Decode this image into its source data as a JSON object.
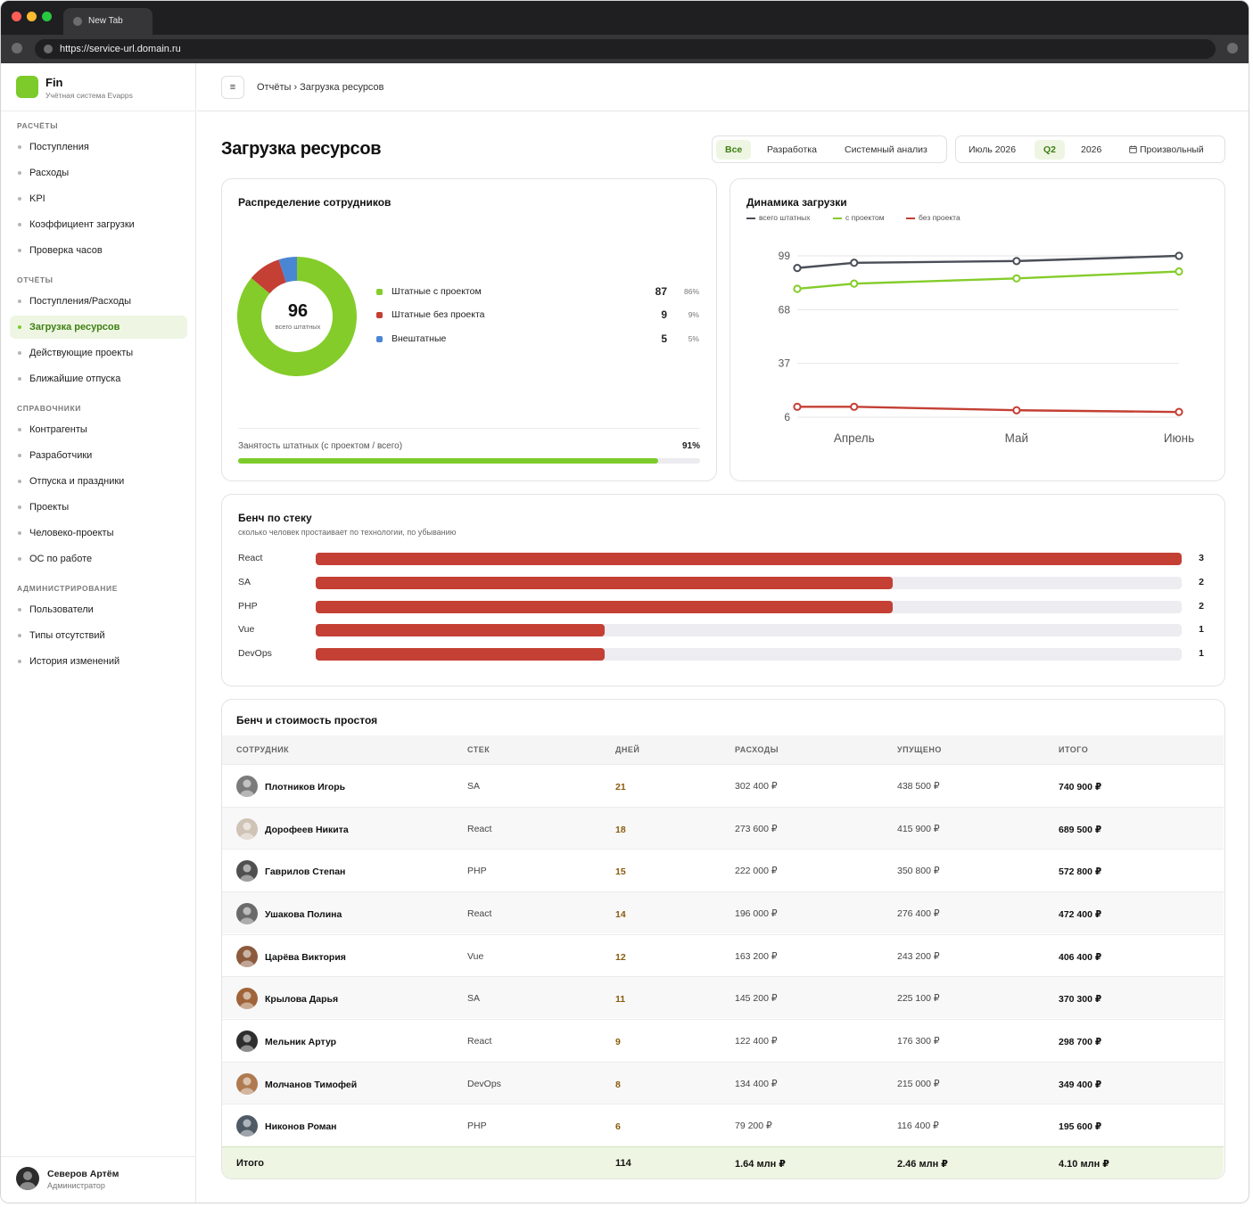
{
  "browser": {
    "tab_title": "New Tab",
    "url": "https://service-url.domain.ru"
  },
  "brand": {
    "name": "Fin",
    "subtitle": "Учётная система Evapps",
    "accent": "#7ccb2b"
  },
  "sidebar": {
    "sections": [
      {
        "title": "РАСЧЁТЫ",
        "items": [
          "Поступления",
          "Расходы",
          "KPI",
          "Коэффициент загрузки",
          "Проверка часов"
        ]
      },
      {
        "title": "ОТЧЁТЫ",
        "items": [
          "Поступления/Расходы",
          "Загрузка ресурсов",
          "Действующие проекты",
          "Ближайшие отпуска"
        ]
      },
      {
        "title": "СПРАВОЧНИКИ",
        "items": [
          "Контрагенты",
          "Разработчики",
          "Отпуска и праздники",
          "Проекты",
          "Человеко-проекты",
          "ОС по работе"
        ]
      },
      {
        "title": "АДМИНИСТРИРОВАНИЕ",
        "items": [
          "Пользователи",
          "Типы отсутствий",
          "История изменений"
        ]
      }
    ],
    "active_item": "Загрузка ресурсов",
    "user": {
      "name": "Северов Артём",
      "role": "Администратор"
    }
  },
  "topbar": {
    "menu_icon": "≡",
    "breadcrumb": "Отчёты › Загрузка ресурсов"
  },
  "page": {
    "title": "Загрузка ресурсов",
    "filter_department": {
      "options": [
        "Все",
        "Разработка",
        "Системный анализ"
      ],
      "selected": "Все"
    },
    "filter_period": {
      "options": [
        "Июль 2026",
        "Q2",
        "2026",
        "Произвольный"
      ],
      "selected": "Q2",
      "custom_icon": "calendar-icon"
    }
  },
  "distribution": {
    "title": "Распределение сотрудников",
    "total": "96",
    "total_caption": "всего штатных",
    "rows": [
      {
        "label": "Штатные с проектом",
        "count": "87",
        "pct": "86%",
        "color": "#84cc2a"
      },
      {
        "label": "Штатные без проекта",
        "count": "9",
        "pct": "9%",
        "color": "#c43f34"
      },
      {
        "label": "Внештатные",
        "count": "5",
        "pct": "5%",
        "color": "#4a86d4"
      }
    ],
    "utilization_label": "Занятость штатных (с проектом / всего)",
    "utilization_value": "91%",
    "utilization_fraction": 0.91
  },
  "chart_data": {
    "type": "line",
    "title": "Динамика загрузки",
    "categories": [
      "Апрель",
      "Май",
      "Июнь"
    ],
    "x": [
      0,
      0.35,
      1.35,
      2.35
    ],
    "y_ticks": [
      6,
      37,
      68,
      99
    ],
    "ylim": [
      6,
      99
    ],
    "grid": true,
    "legend_position": "top-left",
    "series": [
      {
        "name": "всего штатных",
        "color": "#4a4e57",
        "values": [
          92,
          95,
          96,
          99
        ]
      },
      {
        "name": "с проектом",
        "color": "#84cc2a",
        "values": [
          80,
          83,
          86,
          90
        ]
      },
      {
        "name": "без проекта",
        "color": "#c43f34",
        "values": [
          12,
          12,
          10,
          9
        ]
      }
    ]
  },
  "bench_chart": {
    "title": "Бенч по стеку",
    "subtitle": "сколько человек простаивает по технологии, по убыванию",
    "max": 3,
    "color": "#c43f34",
    "rows": [
      {
        "label": "React",
        "value": 3
      },
      {
        "label": "SA",
        "value": 2
      },
      {
        "label": "PHP",
        "value": 2
      },
      {
        "label": "Vue",
        "value": 1
      },
      {
        "label": "DevOps",
        "value": 1
      }
    ]
  },
  "bench_table": {
    "title": "Бенч и стоимость простоя",
    "columns": [
      "СОТРУДНИК",
      "СТЕК",
      "ДНЕЙ",
      "РАСХОДЫ",
      "УПУЩЕНО",
      "ИТОГО"
    ],
    "rows": [
      {
        "name": "Плотников Игорь",
        "stack": "SA",
        "days": "21",
        "expenses": "302 400 ₽",
        "missed": "438 500 ₽",
        "total": "740 900 ₽"
      },
      {
        "name": "Дорофеев Никита",
        "stack": "React",
        "days": "18",
        "expenses": "273 600 ₽",
        "missed": "415 900 ₽",
        "total": "689 500 ₽"
      },
      {
        "name": "Гаврилов Степан",
        "stack": "PHP",
        "days": "15",
        "expenses": "222 000 ₽",
        "missed": "350 800 ₽",
        "total": "572 800 ₽"
      },
      {
        "name": "Ушакова Полина",
        "stack": "React",
        "days": "14",
        "expenses": "196 000 ₽",
        "missed": "276 400 ₽",
        "total": "472 400 ₽"
      },
      {
        "name": "Царёва Виктория",
        "stack": "Vue",
        "days": "12",
        "expenses": "163 200 ₽",
        "missed": "243 200 ₽",
        "total": "406 400 ₽"
      },
      {
        "name": "Крылова Дарья",
        "stack": "SA",
        "days": "11",
        "expenses": "145 200 ₽",
        "missed": "225 100 ₽",
        "total": "370 300 ₽"
      },
      {
        "name": "Мельник Артур",
        "stack": "React",
        "days": "9",
        "expenses": "122 400 ₽",
        "missed": "176 300 ₽",
        "total": "298 700 ₽"
      },
      {
        "name": "Молчанов Тимофей",
        "stack": "DevOps",
        "days": "8",
        "expenses": "134 400 ₽",
        "missed": "215 000 ₽",
        "total": "349 400 ₽"
      },
      {
        "name": "Никонов Роман",
        "stack": "PHP",
        "days": "6",
        "expenses": "79 200 ₽",
        "missed": "116 400 ₽",
        "total": "195 600 ₽"
      }
    ],
    "footer": {
      "label": "Итого",
      "days": "114",
      "expenses": "1.64 млн ₽",
      "missed": "2.46 млн ₽",
      "total": "4.10 млн ₽"
    }
  }
}
